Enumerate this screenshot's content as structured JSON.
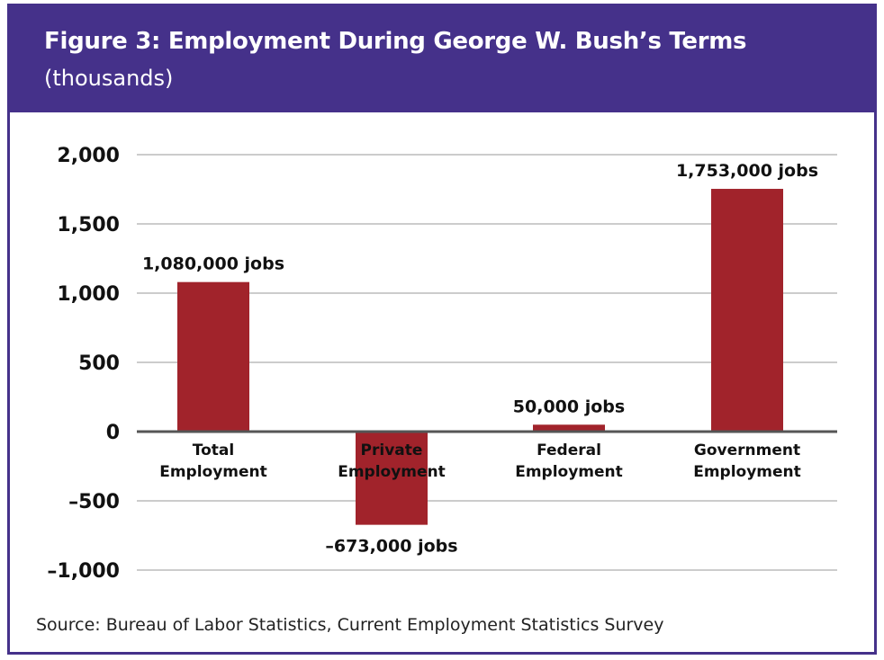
{
  "header": {
    "title": "Figure 3: Employment During George W. Bush’s Terms",
    "subtitle": "(thousands)"
  },
  "source": "Source: Bureau of Labor Statistics, Current Employment Statistics Survey",
  "colors": {
    "header_bg": "#45318a",
    "bar": "#a1232b",
    "grid": "#9a9a9a",
    "zero_line": "#555555"
  },
  "chart_data": {
    "type": "bar",
    "categories": [
      [
        "Total",
        "Employment"
      ],
      [
        "Private",
        "Employment"
      ],
      [
        "Federal",
        "Employment"
      ],
      [
        "Government",
        "Employment"
      ]
    ],
    "values": [
      1080,
      -673,
      50,
      1753
    ],
    "data_labels": [
      "1,080,000 jobs",
      "–673,000 jobs",
      "50,000 jobs",
      "1,753,000 jobs"
    ],
    "yticks": [
      2000,
      1500,
      1000,
      500,
      0,
      -500,
      -1000
    ],
    "ytick_labels": [
      "2,000",
      "1,500",
      "1,000",
      "500",
      "0",
      "–500",
      "–1,000"
    ],
    "ylim": [
      -1000,
      2000
    ],
    "grid": true
  }
}
